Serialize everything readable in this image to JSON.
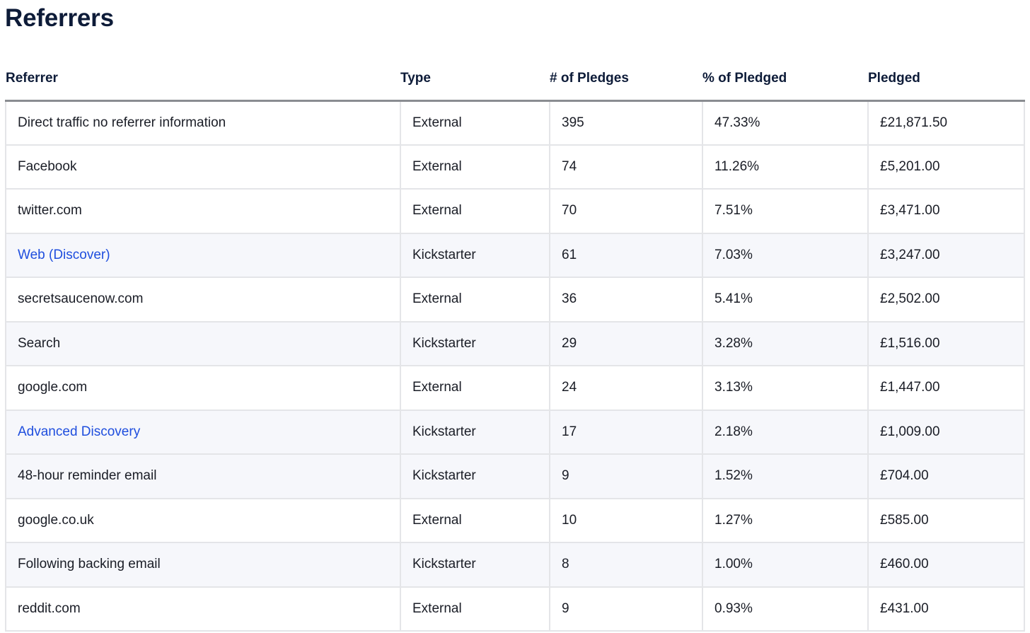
{
  "page_title": "Referrers",
  "columns": {
    "referrer": "Referrer",
    "type": "Type",
    "pledges": "# of Pledges",
    "percent": "% of Pledged",
    "pledged": "Pledged"
  },
  "rows": [
    {
      "referrer": "Direct traffic no referrer information",
      "type": "External",
      "pledges": "395",
      "percent": "47.33%",
      "pledged": "£21,871.50",
      "link": false,
      "shaded": false
    },
    {
      "referrer": "Facebook",
      "type": "External",
      "pledges": "74",
      "percent": "11.26%",
      "pledged": "£5,201.00",
      "link": false,
      "shaded": false
    },
    {
      "referrer": "twitter.com",
      "type": "External",
      "pledges": "70",
      "percent": "7.51%",
      "pledged": "£3,471.00",
      "link": false,
      "shaded": false
    },
    {
      "referrer": "Web (Discover)",
      "type": "Kickstarter",
      "pledges": "61",
      "percent": "7.03%",
      "pledged": "£3,247.00",
      "link": true,
      "shaded": true
    },
    {
      "referrer": "secretsaucenow.com",
      "type": "External",
      "pledges": "36",
      "percent": "5.41%",
      "pledged": "£2,502.00",
      "link": false,
      "shaded": false
    },
    {
      "referrer": "Search",
      "type": "Kickstarter",
      "pledges": "29",
      "percent": "3.28%",
      "pledged": "£1,516.00",
      "link": false,
      "shaded": true
    },
    {
      "referrer": "google.com",
      "type": "External",
      "pledges": "24",
      "percent": "3.13%",
      "pledged": "£1,447.00",
      "link": false,
      "shaded": false
    },
    {
      "referrer": "Advanced Discovery",
      "type": "Kickstarter",
      "pledges": "17",
      "percent": "2.18%",
      "pledged": "£1,009.00",
      "link": true,
      "shaded": true
    },
    {
      "referrer": "48-hour reminder email",
      "type": "Kickstarter",
      "pledges": "9",
      "percent": "1.52%",
      "pledged": "£704.00",
      "link": false,
      "shaded": true
    },
    {
      "referrer": "google.co.uk",
      "type": "External",
      "pledges": "10",
      "percent": "1.27%",
      "pledged": "£585.00",
      "link": false,
      "shaded": false
    },
    {
      "referrer": "Following backing email",
      "type": "Kickstarter",
      "pledges": "8",
      "percent": "1.00%",
      "pledged": "£460.00",
      "link": false,
      "shaded": true
    },
    {
      "referrer": "reddit.com",
      "type": "External",
      "pledges": "9",
      "percent": "0.93%",
      "pledged": "£431.00",
      "link": false,
      "shaded": false
    }
  ],
  "colors": {
    "title": "#0d1b38",
    "link": "#1f4ede",
    "shaded_row": "#f6f7fb",
    "cell_border": "#e4e5e8",
    "header_rule": "#8a8c91"
  }
}
